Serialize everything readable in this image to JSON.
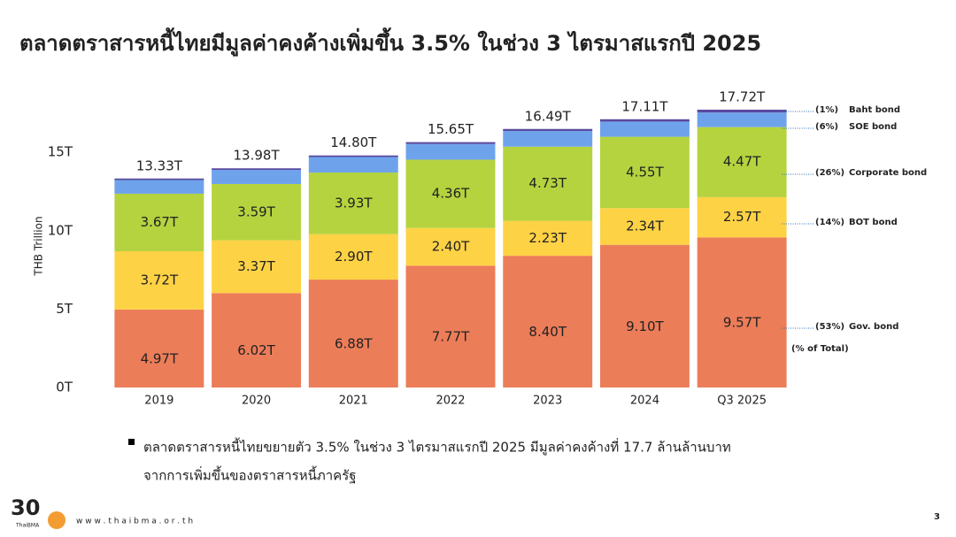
{
  "chart_data": {
    "type": "stacked_bar",
    "title": "ตลาดตราสารหนี้ไทยมีมูลค่าคงค้างเพิ่มขึ้น 3.5% ในช่วง 3 ไตรมาสแรกปี 2025",
    "y_label": "THB Trillion",
    "categories": [
      "2019",
      "2020",
      "2021",
      "2022",
      "2023",
      "2024",
      "Q3 2025"
    ],
    "ylim": [
      0,
      18
    ],
    "yticks": [
      {
        "value": 0,
        "label": "0T"
      },
      {
        "value": 5,
        "label": "5T"
      },
      {
        "value": 10,
        "label": "10T"
      },
      {
        "value": 15,
        "label": "15T"
      }
    ],
    "series": [
      {
        "name": "Gov. bond",
        "share_label": "(53%)",
        "color": "#ec7d59",
        "values": [
          4.97,
          6.02,
          6.88,
          7.77,
          8.4,
          9.1,
          9.57
        ],
        "value_labels": [
          "4.97T",
          "6.02T",
          "6.88T",
          "7.77T",
          "8.40T",
          "9.10T",
          "9.57T"
        ]
      },
      {
        "name": "BOT bond",
        "share_label": "(14%)",
        "color": "#fed245",
        "values": [
          3.72,
          3.37,
          2.9,
          2.4,
          2.23,
          2.34,
          2.57
        ],
        "value_labels": [
          "3.72T",
          "3.37T",
          "2.90T",
          "2.40T",
          "2.23T",
          "2.34T",
          "2.57T"
        ]
      },
      {
        "name": "Corporate bond",
        "share_label": "(26%)",
        "color": "#b5d33f",
        "values": [
          3.67,
          3.59,
          3.93,
          4.36,
          4.73,
          4.55,
          4.47
        ],
        "value_labels": [
          "3.67T",
          "3.59T",
          "3.93T",
          "4.36T",
          "4.73T",
          "4.55T",
          "4.47T"
        ]
      },
      {
        "name": "SOE bond",
        "share_label": "(6%)",
        "color": "#6ea3ec",
        "values": [
          0.87,
          0.9,
          0.99,
          1.0,
          1.0,
          0.97,
          0.93
        ]
      },
      {
        "name": "Baht bond",
        "share_label": "(1%)",
        "color": "#5a4a9e",
        "values": [
          0.1,
          0.1,
          0.1,
          0.12,
          0.13,
          0.15,
          0.18
        ]
      }
    ],
    "totals": {
      "values": [
        13.33,
        13.98,
        14.8,
        15.65,
        16.49,
        17.11,
        17.72
      ],
      "value_labels": [
        "13.33T",
        "13.98T",
        "14.80T",
        "15.65T",
        "16.49T",
        "17.11T",
        "17.72T"
      ]
    },
    "share_note": "(% of Total)"
  },
  "slide": {
    "bullet_lines": [
      "ตลาดตราสารหนี้ไทยขยายตัว 3.5% ในช่วง 3 ไตรมาสแรกปี 2025 มีมูลค่าคงค้างที่ 17.7 ล้านล้านบาท",
      "จากการเพิ่มขึ้นของตราสารหนี้ภาครัฐ"
    ],
    "logo_number": "30",
    "logo_text": "ThaiBMA",
    "website": "w w w . t h a i b m a . o r . t h",
    "page_number": 3
  }
}
